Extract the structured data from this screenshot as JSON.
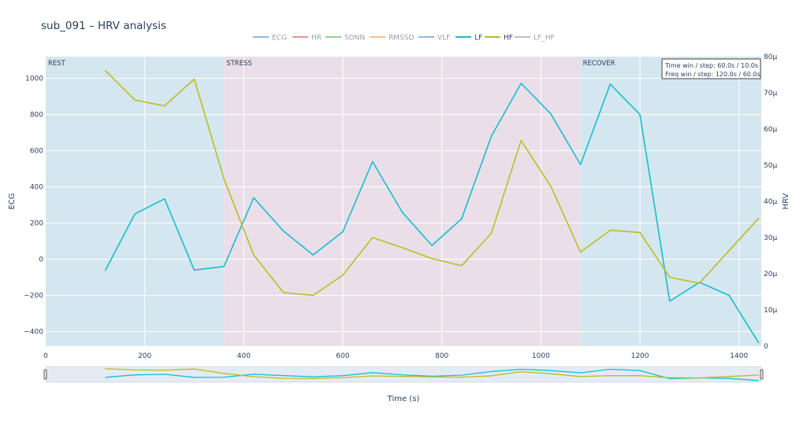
{
  "title": "sub_091 – HRV analysis",
  "annotation": {
    "line1": "Time win / step: 60.0s / 10.0s",
    "line2": "Freq win / step: 120.0s / 60.0s"
  },
  "colors": {
    "rest_band": "#d4e6ef",
    "stress_band": "#eadfe9",
    "grid": "#ffffff",
    "LF": "#17becf",
    "HF": "#bcbd22",
    "ECG": "#1f77b4",
    "HR": "#d62728",
    "SDNN": "#2ca02c",
    "RMSSD": "#ff7f0e",
    "VLF": "#1f77b4",
    "LF_HF": "#7f7f7f",
    "rangeslider_bg": "#e4ebf4"
  },
  "chart_data": {
    "type": "line",
    "title": "sub_091 – HRV analysis",
    "xlabel": "Time (s)",
    "ylabel_left": "ECG",
    "ylabel_right": "HRV",
    "xlim": [
      0,
      1445
    ],
    "ylim_left": [
      -480,
      1120
    ],
    "ylim_right": [
      0,
      80
    ],
    "x_ticks": [
      0,
      200,
      400,
      600,
      800,
      1000,
      1200,
      1400
    ],
    "y_left_ticks": [
      -400,
      -200,
      0,
      200,
      400,
      600,
      800,
      1000
    ],
    "y_right_ticks": [
      0,
      10,
      20,
      30,
      40,
      50,
      60,
      70,
      80
    ],
    "y_right_tick_labels": [
      "0",
      "10μ",
      "20μ",
      "30μ",
      "40μ",
      "50μ",
      "60μ",
      "70μ",
      "80μ"
    ],
    "grid": true,
    "legend_position": "top-center",
    "legend": [
      {
        "name": "ECG",
        "active": false
      },
      {
        "name": "HR",
        "active": false
      },
      {
        "name": "SDNN",
        "active": false
      },
      {
        "name": "RMSSD",
        "active": false
      },
      {
        "name": "VLF",
        "active": false
      },
      {
        "name": "LF",
        "active": true
      },
      {
        "name": "HF",
        "active": true
      },
      {
        "name": "LF_HF",
        "active": false
      }
    ],
    "phases": [
      {
        "label": "REST",
        "start": 0,
        "end": 360
      },
      {
        "label": "STRESS",
        "start": 360,
        "end": 1080
      },
      {
        "label": "RECOVER",
        "start": 1080,
        "end": 1445
      }
    ],
    "series": [
      {
        "name": "LF",
        "axis": "right",
        "x": [
          120,
          180,
          240,
          300,
          360,
          420,
          480,
          540,
          600,
          660,
          720,
          780,
          840,
          900,
          960,
          1020,
          1080,
          1140,
          1200,
          1260,
          1320,
          1380,
          1440
        ],
        "y": [
          20.8,
          36.5,
          40.7,
          21.0,
          22.0,
          41.0,
          31.8,
          25.2,
          31.6,
          51.0,
          37.0,
          27.8,
          35.2,
          58.0,
          72.6,
          64.2,
          50.2,
          72.4,
          64.0,
          12.4,
          17.6,
          14.0,
          0.8
        ]
      },
      {
        "name": "HF",
        "axis": "right",
        "x": [
          120,
          180,
          240,
          300,
          360,
          420,
          480,
          540,
          600,
          660,
          720,
          780,
          840,
          900,
          960,
          1020,
          1080,
          1140,
          1200,
          1260,
          1320,
          1380,
          1440
        ],
        "y": [
          76.2,
          68.0,
          66.4,
          73.8,
          46.2,
          25.2,
          14.8,
          14.0,
          19.6,
          30.0,
          27.2,
          24.2,
          22.2,
          31.2,
          56.8,
          44.2,
          26.0,
          32.0,
          31.4,
          19.0,
          17.4,
          26.4,
          35.4
        ]
      }
    ]
  }
}
